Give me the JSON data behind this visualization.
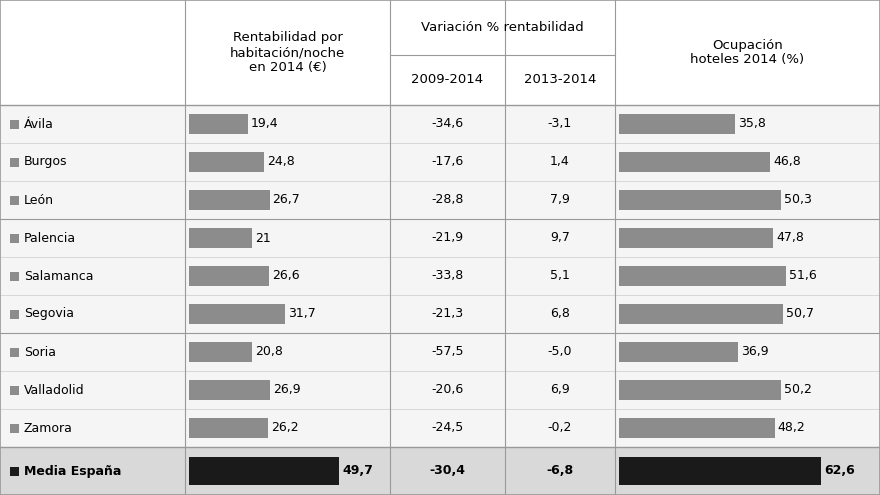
{
  "cities": [
    "Ávila",
    "Burgos",
    "León",
    "Palencia",
    "Salamanca",
    "Segovia",
    "Soria",
    "Valladolid",
    "Zamora"
  ],
  "footer_city": "Media España",
  "rentabilidad": [
    19.4,
    24.8,
    26.7,
    21.0,
    26.6,
    31.7,
    20.8,
    26.9,
    26.2
  ],
  "rentabilidad_labels": [
    "19,4",
    "24,8",
    "26,7",
    "21",
    "26,6",
    "31,7",
    "20,8",
    "26,9",
    "26,2"
  ],
  "rentabilidad_footer": 49.7,
  "rentabilidad_footer_label": "49,7",
  "var_2009_2014": [
    "-34,6",
    "-17,6",
    "-28,8",
    "-21,9",
    "-33,8",
    "-21,3",
    "-57,5",
    "-20,6",
    "-24,5"
  ],
  "var_2013_2014": [
    "-3,1",
    "1,4",
    "7,9",
    "9,7",
    "5,1",
    "6,8",
    "-5,0",
    "6,9",
    "-0,2"
  ],
  "var_2009_2014_footer": "-30,4",
  "var_2013_2014_footer": "-6,8",
  "ocupacion": [
    35.8,
    46.8,
    50.3,
    47.8,
    51.6,
    50.7,
    36.9,
    50.2,
    48.2
  ],
  "ocupacion_labels": [
    "35,8",
    "46,8",
    "50,3",
    "47,8",
    "51,6",
    "50,7",
    "36,9",
    "50,2",
    "48,2"
  ],
  "ocupacion_footer": 62.6,
  "ocupacion_footer_label": "62,6",
  "rentabilidad_max": 55.0,
  "ocupacion_max": 70.0,
  "bar_color_cities": "#8c8c8c",
  "bar_color_footer": "#1a1a1a",
  "square_color_cities": "#8c8c8c",
  "square_color_footer": "#1a1a1a",
  "bg_rows": "#f5f5f5",
  "bg_header": "#ffffff",
  "bg_footer": "#d9d9d9",
  "line_color_major": "#999999",
  "line_color_minor": "#cccccc",
  "col_header_1": "Rentabilidad por\nhabitación/noche\nen 2014 (€)",
  "col_header_2": "Variación % rentabilidad",
  "col_header_2a": "2009-2014",
  "col_header_2b": "2013-2014",
  "col_header_3": "Ocupación\nhoteles 2014 (%)",
  "divider_rows": [
    3,
    6
  ],
  "fontsize": 9.0,
  "fontsize_header": 9.5
}
